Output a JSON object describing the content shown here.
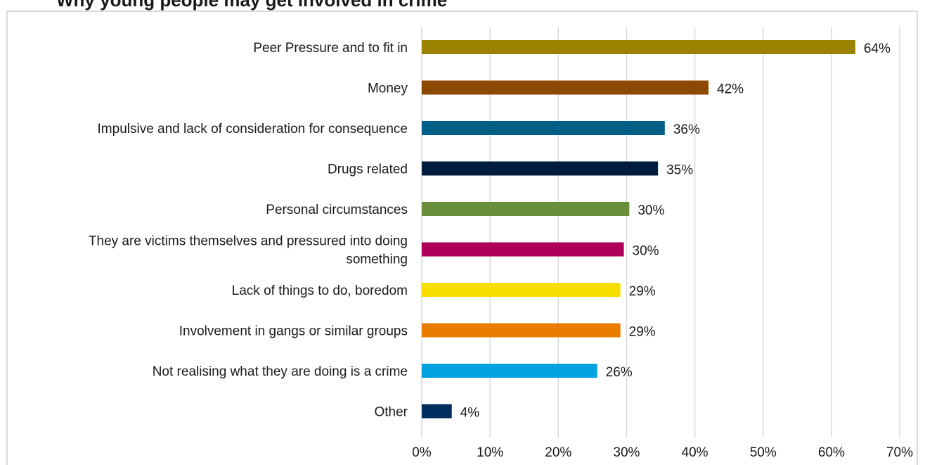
{
  "chart_data": {
    "type": "bar",
    "orientation": "horizontal",
    "title": "Why young people may get involved in crime",
    "categories": [
      "Peer Pressure and to fit in",
      "Money",
      "Impulsive and lack of consideration for consequence",
      "Drugs related",
      "Personal circumstances",
      "They are victims themselves and pressured into doing something",
      "Lack of things to do, boredom",
      "Involvement in gangs or similar groups",
      "Not realising what they are doing is a crime",
      "Other"
    ],
    "category_label_lines": [
      [
        "Peer Pressure and to fit in"
      ],
      [
        "Money"
      ],
      [
        "Impulsive and lack of consideration for consequence"
      ],
      [
        "Drugs related"
      ],
      [
        "Personal circumstances"
      ],
      [
        "They are victims themselves and pressured into doing",
        "something"
      ],
      [
        "Lack of things to do, boredom"
      ],
      [
        "Involvement in gangs or similar groups"
      ],
      [
        "Not realising what they are doing is a crime"
      ],
      [
        "Other"
      ]
    ],
    "values": [
      63.5,
      42,
      35.6,
      34.6,
      30.4,
      29.6,
      29.1,
      29.1,
      25.7,
      4.4
    ],
    "data_labels": [
      "64%",
      "42%",
      "36%",
      "35%",
      "30%",
      "30%",
      "29%",
      "29%",
      "26%",
      "4%"
    ],
    "colors": [
      "#9A8300",
      "#8B4A00",
      "#005F87",
      "#001D3D",
      "#6A8F3A",
      "#AE0059",
      "#F7DE00",
      "#EA7D00",
      "#00A2E0",
      "#002F5F"
    ],
    "xlim": [
      0,
      70
    ],
    "xticks": [
      0,
      10,
      20,
      30,
      40,
      50,
      60,
      70
    ],
    "xtick_labels": [
      "0%",
      "10%",
      "20%",
      "30%",
      "40%",
      "50%",
      "60%",
      "70%"
    ],
    "xlabel": "",
    "ylabel": "",
    "grid": true,
    "gridline_color": "#d9d9d9",
    "legend": "none"
  }
}
